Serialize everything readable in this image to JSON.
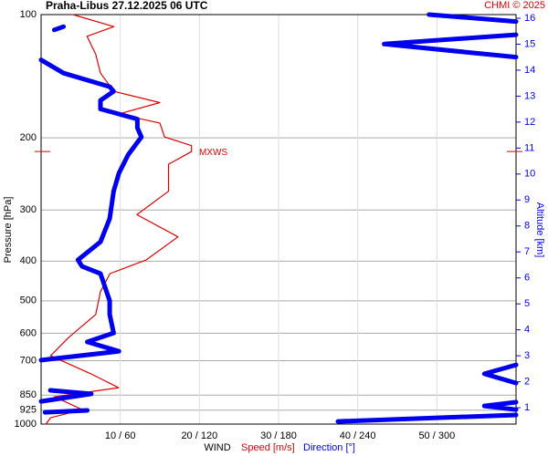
{
  "chart_data": {
    "type": "wind-profile",
    "title": "Praha-Libus   27.12.2025 06 UTC",
    "credit": "CHMI © 2025",
    "ylabel": "Pressure [hPa]",
    "y2label": "Altitude [km]",
    "xlabel": "WIND",
    "log_y": true,
    "grid": true,
    "ylim": [
      100,
      1000
    ],
    "yticks": [
      100,
      200,
      300,
      400,
      500,
      600,
      700,
      850,
      925,
      1000
    ],
    "y2lim": [
      0.37,
      16.14
    ],
    "y2ticks": [
      1,
      2,
      3,
      4,
      5,
      6,
      7,
      8,
      9,
      10,
      11,
      12,
      13,
      14,
      15,
      16
    ],
    "xlim": [
      0,
      60
    ],
    "x2lim": [
      0,
      360
    ],
    "xticks": [
      {
        "value": 10,
        "label": "10 / 60"
      },
      {
        "value": 20,
        "label": "20 / 120"
      },
      {
        "value": 30,
        "label": "30 / 180"
      },
      {
        "value": 40,
        "label": "40 / 240"
      },
      {
        "value": 50,
        "label": "50 / 300"
      }
    ],
    "annotation": {
      "label": "MXWS",
      "pressure": 216
    },
    "series": [
      {
        "name": "Speed [m/s]",
        "color": "#e00000",
        "pressure": [
          100,
          107,
          113,
          125,
          139,
          154,
          164,
          175,
          184,
          199,
          209,
          216,
          232,
          270,
          308,
          349,
          397,
          429,
          475,
          540,
          614,
          681,
          754,
          815,
          858,
          922,
          965,
          1000
        ],
        "values": [
          4.0,
          9.2,
          5.8,
          6.9,
          7.5,
          9.2,
          15.0,
          9.8,
          15.0,
          15.6,
          19.0,
          19.0,
          16.1,
          16.1,
          12.1,
          17.3,
          13.3,
          8.7,
          7.5,
          6.9,
          3.5,
          1.2,
          6.3,
          9.8,
          1.7,
          5.2,
          1.2,
          0.6
        ]
      },
      {
        "name": "Direction [°]",
        "color": "#0000ee",
        "axis": "x2",
        "pressure": [
          100,
          104,
          null,
          107,
          109,
          null,
          112,
          118,
          127,
          null,
          129,
          139,
          150,
          154,
          162,
          170,
          180,
          189,
          199,
          220,
          244,
          270,
          315,
          359,
          397,
          412,
          429,
          500,
          540,
          599,
          630,
          664,
          698,
          null,
          717,
          754,
          794,
          null,
          827,
          844,
          880,
          null,
          884,
          903,
          922,
          null,
          926,
          936,
          null,
          950,
          985
        ],
        "values": [
          294,
          360,
          null,
          17,
          10,
          null,
          360,
          260,
          360,
          null,
          0,
          17,
          52,
          55,
          45,
          45,
          73,
          73,
          76,
          66,
          59,
          55,
          52,
          45,
          28,
          31,
          45,
          52,
          52,
          55,
          35,
          59,
          0,
          null,
          360,
          336,
          360,
          null,
          7,
          38,
          0,
          null,
          360,
          336,
          360,
          null,
          35,
          3,
          null,
          360,
          225
        ]
      }
    ]
  }
}
